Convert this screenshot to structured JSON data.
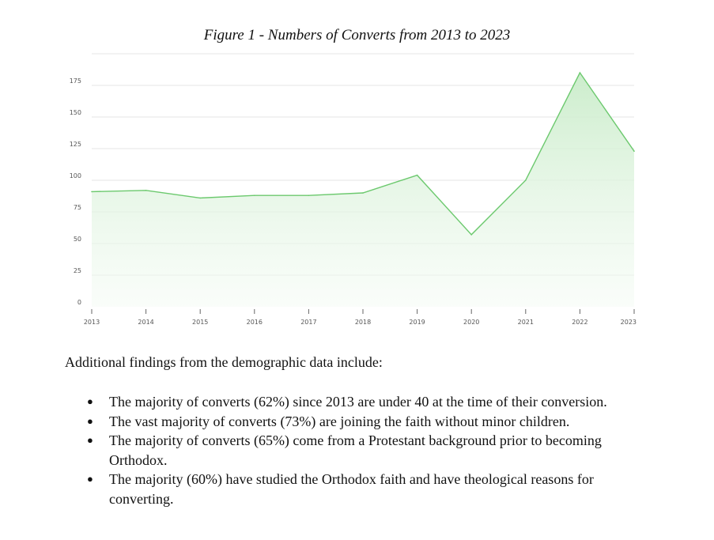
{
  "figure_title": "Figure 1 - Numbers of Converts from 2013 to 2023",
  "chart_data": {
    "type": "area",
    "x": [
      "2013",
      "2014",
      "2015",
      "2016",
      "2017",
      "2018",
      "2019",
      "2020",
      "2021",
      "2022",
      "2023"
    ],
    "series": [
      {
        "values": [
          91,
          92,
          86,
          88,
          88,
          90,
          104,
          57,
          100,
          185,
          123
        ]
      }
    ],
    "y_ticks": [
      "0",
      "25",
      "50",
      "75",
      "100",
      "125",
      "150",
      "175"
    ],
    "ylim": [
      0,
      200
    ],
    "grid": true,
    "line_color": "#6cc96e",
    "fill_color": "#c9ecc9"
  },
  "intro": "Additional findings from the demographic data include:",
  "findings": [
    "The majority of converts (62%) since 2013 are under 40 at the time of their conversion.",
    "The vast majority of converts (73%) are joining the faith without minor children.",
    "The majority of converts (65%) come from a Protestant background prior to becoming Orthodox.",
    "The majority (60%) have studied the Orthodox faith and have theological reasons for converting."
  ]
}
